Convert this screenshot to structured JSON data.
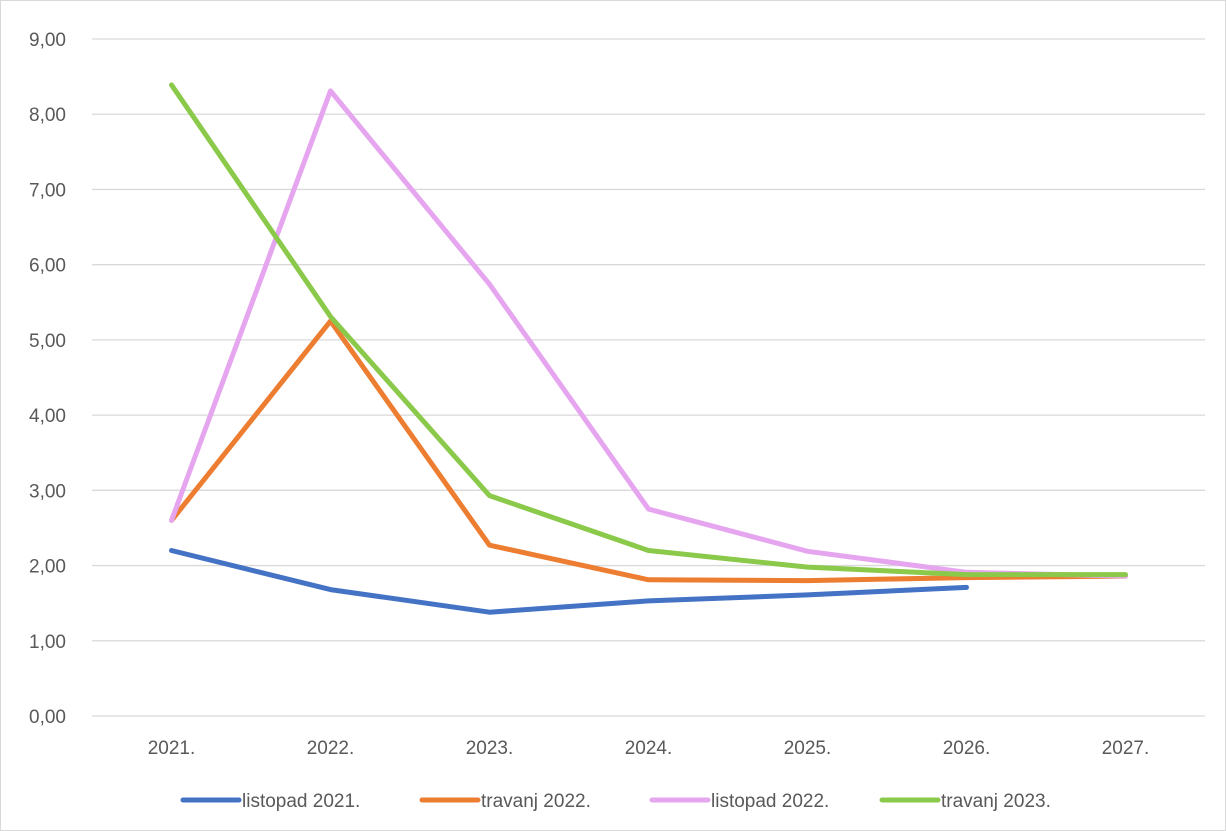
{
  "chart_data": {
    "type": "line",
    "title": "",
    "xlabel": "",
    "ylabel": "",
    "categories": [
      "2021.",
      "2022.",
      "2023.",
      "2024.",
      "2025.",
      "2026.",
      "2027."
    ],
    "ylim": [
      0,
      9
    ],
    "y_ticks": [
      "0,00",
      "1,00",
      "2,00",
      "3,00",
      "4,00",
      "5,00",
      "6,00",
      "7,00",
      "8,00",
      "9,00"
    ],
    "grid": true,
    "legend_position": "bottom",
    "series": [
      {
        "name": "listopad 2021.",
        "color": "#4472c4",
        "values": [
          2.2,
          1.68,
          1.38,
          1.53,
          1.61,
          1.71,
          null
        ]
      },
      {
        "name": "travanj 2022.",
        "color": "#ed7d31",
        "values": [
          2.6,
          5.25,
          2.27,
          1.81,
          1.8,
          1.84,
          1.86
        ]
      },
      {
        "name": "listopad 2022.",
        "color": "#e6a6ef",
        "values": [
          2.6,
          8.31,
          5.74,
          2.75,
          2.19,
          1.91,
          1.86
        ]
      },
      {
        "name": "travanj 2023.",
        "color": "#8bc94a",
        "values": [
          8.39,
          5.31,
          2.93,
          2.2,
          1.98,
          1.88,
          1.88
        ]
      }
    ]
  }
}
